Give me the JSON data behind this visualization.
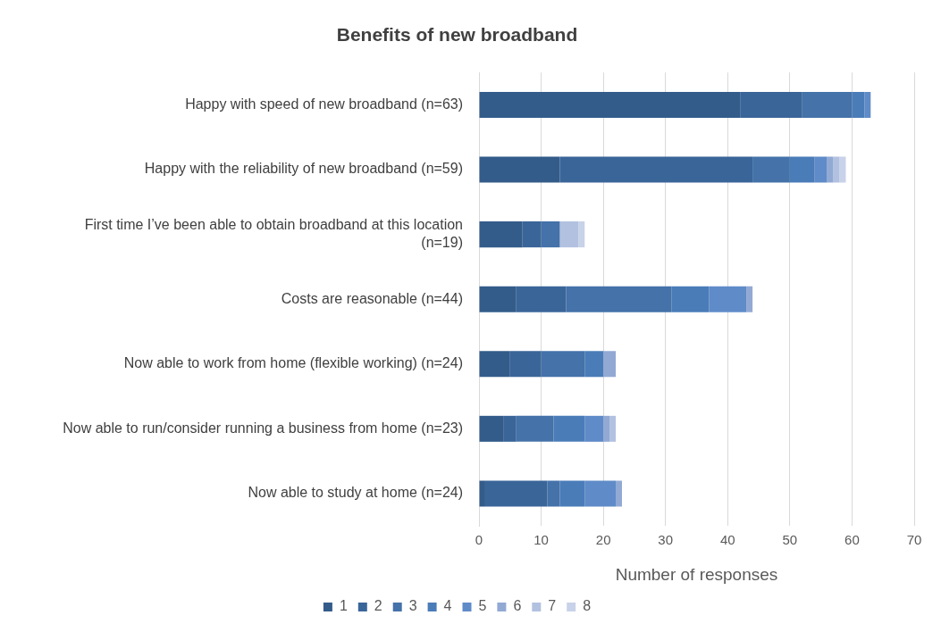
{
  "chart_data": {
    "type": "bar",
    "orientation": "horizontal",
    "stacked": true,
    "title": "Benefits of new broadband",
    "xlabel": "Number of responses",
    "categories": [
      "Happy with speed of new broadband (n=63)",
      "Happy with the reliability of new broadband (n=59)",
      "First time I’ve been able to obtain broadband at this location (n=19)",
      "Costs are reasonable (n=44)",
      "Now able to work from home (flexible working) (n=24)",
      "Now able to run/consider running a business from home (n=23)",
      "Now able to study at home (n=24)"
    ],
    "series": [
      {
        "name": "1",
        "color": "#335c8a",
        "values": [
          42,
          13,
          7,
          6,
          5,
          4,
          1
        ]
      },
      {
        "name": "2",
        "color": "#3a6599",
        "values": [
          10,
          31,
          3,
          8,
          5,
          2,
          10
        ]
      },
      {
        "name": "3",
        "color": "#4472a9",
        "values": [
          8,
          6,
          3,
          17,
          7,
          6,
          2
        ]
      },
      {
        "name": "4",
        "color": "#4a7cb8",
        "values": [
          2,
          4,
          0,
          6,
          3,
          5,
          4
        ]
      },
      {
        "name": "5",
        "color": "#5f8bc8",
        "values": [
          1,
          2,
          0,
          6,
          0,
          3,
          5
        ]
      },
      {
        "name": "6",
        "color": "#92a9d4",
        "values": [
          0,
          1,
          0,
          1,
          2,
          1,
          1
        ]
      },
      {
        "name": "7",
        "color": "#b2c1e0",
        "values": [
          0,
          1,
          3,
          0,
          0,
          1,
          0
        ]
      },
      {
        "name": "8",
        "color": "#c8d2e8",
        "values": [
          0,
          1,
          1,
          0,
          0,
          0,
          0
        ]
      }
    ],
    "xlim": [
      0,
      70
    ],
    "xticks": [
      0,
      10,
      20,
      30,
      40,
      50,
      60,
      70
    ],
    "grid": "x",
    "legend": "bottom"
  }
}
